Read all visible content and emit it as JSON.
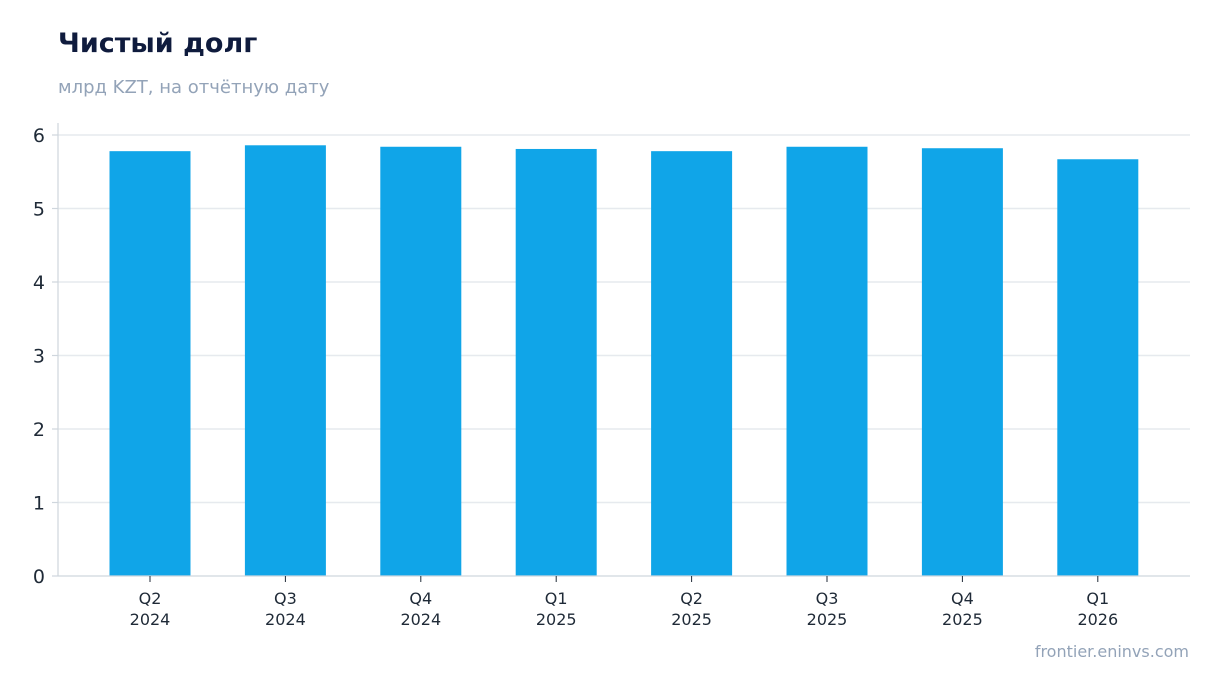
{
  "chart_data": {
    "type": "bar",
    "title": "Чистый долг",
    "subtitle": "млрд KZT, на отчётную дату",
    "categories": [
      [
        "Q2",
        "2024"
      ],
      [
        "Q3",
        "2024"
      ],
      [
        "Q4",
        "2024"
      ],
      [
        "Q1",
        "2025"
      ],
      [
        "Q2",
        "2025"
      ],
      [
        "Q3",
        "2025"
      ],
      [
        "Q4",
        "2025"
      ],
      [
        "Q1",
        "2026"
      ]
    ],
    "values": [
      5.78,
      5.86,
      5.84,
      5.81,
      5.78,
      5.84,
      5.82,
      5.67
    ],
    "ylim": [
      0,
      6
    ],
    "yticks": [
      0,
      1,
      2,
      3,
      4,
      5,
      6
    ],
    "xlabel": "",
    "ylabel": "",
    "grid": true,
    "bar_color": "#10a5e8",
    "grid_color": "#e6eaee",
    "axis_color": "#cfd6dd"
  },
  "footer": {
    "source": "frontier.eninvs.com"
  }
}
